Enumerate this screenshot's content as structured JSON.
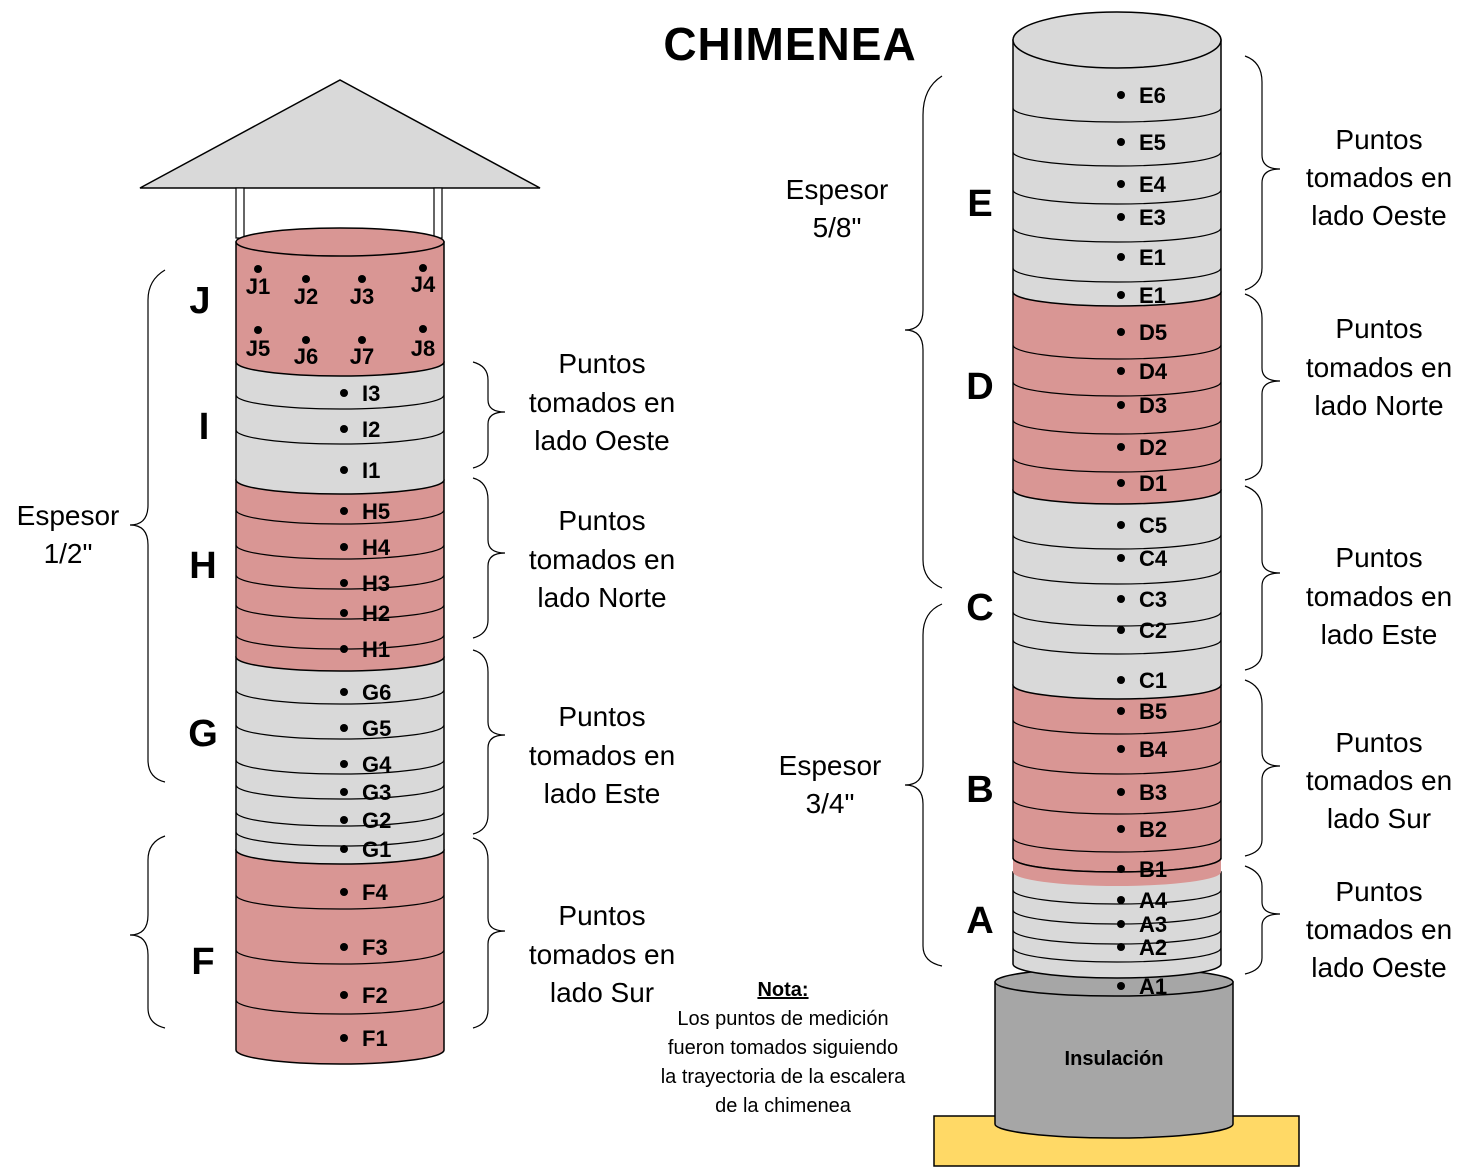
{
  "title": "CHIMENEA",
  "colors": {
    "gray": "#d9d9d9",
    "red": "#d99694",
    "base": "#a6a6a6",
    "footing": "#ffd966",
    "roof": "#d9d9d9",
    "stroke": "#000000"
  },
  "left_sections": [
    {
      "letter": "J",
      "color": "red",
      "points": [
        "J1",
        "J2",
        "J3",
        "J4",
        "J5",
        "J6",
        "J7",
        "J8"
      ]
    },
    {
      "letter": "I",
      "color": "gray",
      "points": [
        "I3",
        "I2",
        "I1"
      ]
    },
    {
      "letter": "H",
      "color": "red",
      "points": [
        "H5",
        "H4",
        "H3",
        "H2",
        "H1"
      ]
    },
    {
      "letter": "G",
      "color": "gray",
      "points": [
        "G6",
        "G5",
        "G4",
        "G3",
        "G2",
        "G1"
      ]
    },
    {
      "letter": "F",
      "color": "red",
      "points": [
        "F4",
        "F3",
        "F2",
        "F1"
      ]
    }
  ],
  "right_sections": [
    {
      "letter": "E",
      "color": "gray",
      "points": [
        "E6",
        "E5",
        "E4",
        "E3",
        "E1",
        "E1"
      ]
    },
    {
      "letter": "D",
      "color": "red",
      "points": [
        "D5",
        "D4",
        "D3",
        "D2",
        "D1"
      ]
    },
    {
      "letter": "C",
      "color": "gray",
      "points": [
        "C5",
        "C4",
        "C3",
        "C2",
        "C1"
      ]
    },
    {
      "letter": "B",
      "color": "red",
      "points": [
        "B5",
        "B4",
        "B3",
        "B2",
        "B1"
      ]
    },
    {
      "letter": "A",
      "color": "gray",
      "points": [
        "A4",
        "A3",
        "A2",
        "A1"
      ]
    }
  ],
  "side_labels": {
    "left": [
      [
        "Puntos",
        "tomados en",
        "lado Oeste"
      ],
      [
        "Puntos",
        "tomados en",
        "lado Norte"
      ],
      [
        "Puntos",
        "tomados en",
        "lado Este"
      ],
      [
        "Puntos",
        "tomados en",
        "lado Sur"
      ]
    ],
    "right": [
      [
        "Puntos",
        "tomados en",
        "lado Oeste"
      ],
      [
        "Puntos",
        "tomados en",
        "lado Norte"
      ],
      [
        "Puntos",
        "tomados en",
        "lado Este"
      ],
      [
        "Puntos",
        "tomados en",
        "lado Sur"
      ],
      [
        "Puntos",
        "tomados en",
        "lado Oeste"
      ]
    ]
  },
  "thickness_labels": {
    "left": [
      "Espesor",
      "1/2\""
    ],
    "right_top": [
      "Espesor",
      "5/8\""
    ],
    "right_bottom": [
      "Espesor",
      "3/4\""
    ]
  },
  "note": {
    "heading": "Nota:",
    "lines": [
      "Los puntos de medición",
      "fueron tomados siguiendo",
      "la trayectoria de la escalera",
      "de la chimenea"
    ]
  },
  "insulation_label": "Insulación"
}
